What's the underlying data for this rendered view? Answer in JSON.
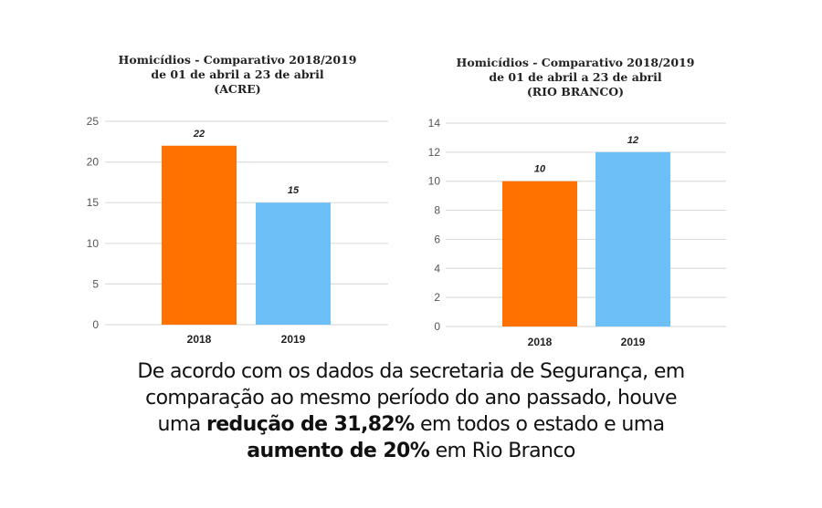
{
  "chart_data": [
    {
      "type": "bar",
      "title": "Homicídios - Comparativo 2018/2019\nde 01 de abril a 23 de abril\n(ACRE)",
      "categories": [
        "2018",
        "2019"
      ],
      "values": [
        22,
        15
      ],
      "data_labels": [
        "22",
        "15"
      ],
      "colors": [
        "#ff7200",
        "#6dc0f7"
      ],
      "yticks": [
        "0",
        "5",
        "10",
        "15",
        "20",
        "25"
      ],
      "ylim": [
        0,
        25
      ],
      "ytick_step": 5,
      "xlabel": "",
      "ylabel": "",
      "grid": true,
      "legend": "none"
    },
    {
      "type": "bar",
      "title": "Homicídios - Comparativo 2018/2019\nde 01 de abril a 23 de abril\n(RIO BRANCO)",
      "categories": [
        "2018",
        "2019"
      ],
      "values": [
        10,
        12
      ],
      "data_labels": [
        "10",
        "12"
      ],
      "colors": [
        "#ff7200",
        "#6dc0f7"
      ],
      "yticks": [
        "0",
        "2",
        "4",
        "6",
        "8",
        "10",
        "12",
        "14"
      ],
      "ylim": [
        0,
        14
      ],
      "ytick_step": 2,
      "xlabel": "",
      "ylabel": "",
      "grid": true,
      "legend": "none"
    }
  ],
  "caption": {
    "line1": "De acordo com os dados da secretaria de Segurança, em",
    "line2": "comparação ao mesmo período do ano passado, houve",
    "line3_pre": "uma ",
    "line3_bold": "redução de 31,82%",
    "line3_post": " em todos o estado e uma",
    "line4_bold": "aumento de 20%",
    "line4_post": " em Rio Branco"
  },
  "colors": {
    "bar_2018": "#ff7200",
    "bar_2019": "#6dc0f7",
    "gridline": "#dddddd"
  }
}
